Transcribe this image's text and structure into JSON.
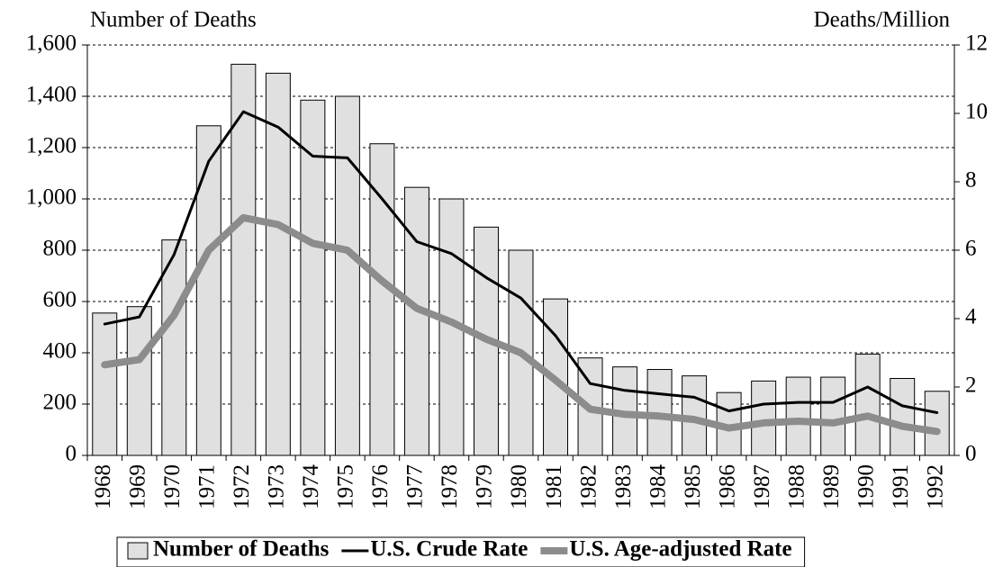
{
  "chart_data": {
    "type": "bar",
    "y_label": "Number of Deaths",
    "y2_label": "Deaths/Million",
    "categories": [
      "1968",
      "1969",
      "1970",
      "1971",
      "1972",
      "1973",
      "1974",
      "1975",
      "1976",
      "1977",
      "1978",
      "1979",
      "1980",
      "1981",
      "1982",
      "1983",
      "1984",
      "1985",
      "1986",
      "1987",
      "1988",
      "1989",
      "1990",
      "1991",
      "1992"
    ],
    "series": [
      {
        "name": "Number of Deaths",
        "type": "bar",
        "color": "#e0e0e0",
        "values": [
          555,
          580,
          840,
          1285,
          1525,
          1490,
          1385,
          1400,
          1215,
          1045,
          1000,
          890,
          800,
          610,
          380,
          345,
          335,
          310,
          245,
          290,
          305,
          305,
          395,
          300,
          250
        ]
      },
      {
        "name": "U.S. Crude Rate",
        "type": "line",
        "axis": "y2",
        "color": "#000000",
        "values": [
          3.84,
          4.05,
          5.87,
          8.6,
          10.05,
          9.6,
          8.75,
          8.7,
          7.5,
          6.25,
          5.9,
          5.2,
          4.6,
          3.5,
          2.1,
          1.9,
          1.8,
          1.7,
          1.3,
          1.5,
          1.55,
          1.55,
          2.0,
          1.45,
          1.25
        ]
      },
      {
        "name": "U.S. Age-adjusted Rate",
        "type": "line",
        "axis": "y2",
        "color": "#8c8c8c",
        "values": [
          2.65,
          2.8,
          4.1,
          6.0,
          6.95,
          6.75,
          6.2,
          6.0,
          5.1,
          4.3,
          3.9,
          3.4,
          3.0,
          2.2,
          1.35,
          1.2,
          1.15,
          1.05,
          0.8,
          0.95,
          1.0,
          0.95,
          1.15,
          0.85,
          0.7
        ]
      }
    ],
    "ylim": [
      0,
      1600
    ],
    "yticks": [
      0,
      200,
      400,
      600,
      800,
      {
        "value": 1000,
        "label": "1,000"
      },
      {
        "value": 1200,
        "label": "1,200"
      },
      {
        "value": 1400,
        "label": "1,400"
      },
      {
        "value": 1600,
        "label": "1,600"
      }
    ],
    "y2lim": [
      0,
      12
    ],
    "y2ticks": [
      0,
      2,
      4,
      6,
      8,
      10,
      12
    ],
    "grid": true,
    "legend": "bottom"
  }
}
